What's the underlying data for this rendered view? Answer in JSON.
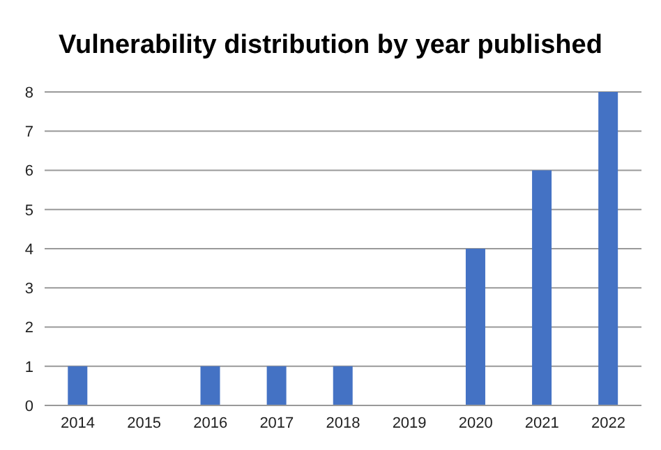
{
  "chart_data": {
    "type": "bar",
    "title": "Vulnerability distribution by year published",
    "categories": [
      "2014",
      "2015",
      "2016",
      "2017",
      "2018",
      "2019",
      "2020",
      "2021",
      "2022"
    ],
    "values": [
      1,
      0,
      1,
      1,
      1,
      0,
      4,
      6,
      8
    ],
    "color": "#4472c4",
    "ylim": [
      0,
      8
    ],
    "yticks": [
      0,
      1,
      2,
      3,
      4,
      5,
      6,
      7,
      8
    ],
    "grid": "y"
  }
}
